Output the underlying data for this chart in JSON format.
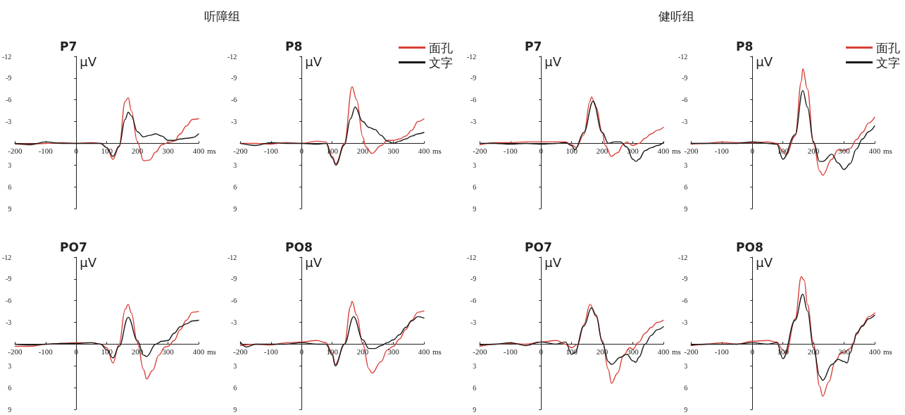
{
  "chart_data": [
    {
      "type": "line",
      "title": "P7",
      "ylabel": "μV",
      "xlabel": "ms",
      "annotations": [
        "听障组"
      ],
      "xlim": [
        -200,
        400
      ],
      "xticks": [
        -200,
        -100,
        0,
        100,
        200,
        300,
        400
      ],
      "ylim": [
        9,
        -12
      ],
      "yticks": [
        -12,
        -9,
        -6,
        -3,
        3,
        6,
        9
      ],
      "legend": false,
      "marker": "none",
      "line_style": "solid",
      "series": [
        {
          "color": "#d9413a",
          "x": [
            -200,
            -150,
            -100,
            -50,
            0,
            50,
            80,
            100,
            120,
            140,
            160,
            170,
            180,
            200,
            220,
            240,
            260,
            280,
            300,
            320,
            340,
            360,
            380,
            400
          ],
          "values": [
            0.1,
            0.1,
            0,
            -0.1,
            0,
            -0.1,
            0,
            0.6,
            2.2,
            0.5,
            -5.8,
            -6.3,
            -4.5,
            -0.2,
            2.4,
            2.3,
            1.2,
            0.2,
            -0.1,
            -0.3,
            -1.3,
            -2.4,
            -3.3,
            -3.4
          ]
        },
        {
          "color": "#1a1a1a",
          "x": [
            -200,
            -150,
            -100,
            -50,
            0,
            50,
            80,
            100,
            120,
            140,
            160,
            170,
            180,
            200,
            220,
            240,
            260,
            280,
            300,
            320,
            340,
            360,
            380,
            400
          ],
          "values": [
            0,
            0.2,
            -0.2,
            0,
            0,
            0,
            0,
            0.6,
            1.8,
            0.4,
            -3.3,
            -4.3,
            -3.8,
            -1.6,
            -0.9,
            -1.1,
            -1.3,
            -1.0,
            -0.4,
            -0.4,
            -0.6,
            -0.7,
            -0.8,
            -1.3
          ]
        }
      ]
    },
    {
      "type": "line",
      "title": "P8",
      "ylabel": "μV",
      "xlabel": "ms",
      "xlim": [
        -200,
        400
      ],
      "xticks": [
        -200,
        -100,
        0,
        100,
        200,
        300,
        400
      ],
      "ylim": [
        9,
        -12
      ],
      "yticks": [
        -12,
        -9,
        -6,
        -3,
        3,
        6,
        9
      ],
      "legend": "top right",
      "marker": "none",
      "line_style": "solid",
      "series": [
        {
          "name": "面孔",
          "color": "#d9413a",
          "x": [
            -200,
            -150,
            -100,
            -50,
            0,
            50,
            80,
            100,
            112,
            140,
            165,
            180,
            200,
            210,
            230,
            260,
            280,
            300,
            320,
            340,
            360,
            380,
            400
          ],
          "values": [
            0,
            0,
            0.1,
            -0.1,
            0,
            -0.3,
            -0.2,
            1.8,
            2.8,
            0,
            -7.8,
            -6,
            -0.9,
            0.5,
            1.4,
            0.3,
            -0.4,
            -0.4,
            -0.6,
            -1.0,
            -1.8,
            -3.0,
            -3.4
          ]
        },
        {
          "name": "文字",
          "color": "#1a1a1a",
          "x": [
            -200,
            -150,
            -100,
            -50,
            0,
            50,
            80,
            100,
            112,
            140,
            160,
            175,
            200,
            220,
            240,
            260,
            280,
            300,
            320,
            340,
            360,
            380,
            400
          ],
          "values": [
            0,
            0.3,
            -0.1,
            0,
            0,
            0.1,
            0,
            2.0,
            3.0,
            0.2,
            -3.4,
            -5.0,
            -3.0,
            -2.2,
            -1.9,
            -1.1,
            -0.3,
            0,
            -0.3,
            -0.6,
            -1.0,
            -1.3,
            -1.5
          ]
        }
      ]
    },
    {
      "type": "line",
      "title": "P7",
      "ylabel": "μV",
      "xlabel": "ms",
      "annotations": [
        "健听组"
      ],
      "xlim": [
        -200,
        400
      ],
      "xticks": [
        -200,
        -100,
        0,
        100,
        200,
        300,
        400
      ],
      "ylim": [
        9,
        -12
      ],
      "yticks": [
        -12,
        -9,
        -6,
        -3,
        3,
        6,
        9
      ],
      "legend": false,
      "marker": "none",
      "line_style": "solid",
      "series": [
        {
          "color": "#d9413a",
          "x": [
            -200,
            -150,
            -100,
            -50,
            0,
            50,
            80,
            100,
            115,
            140,
            160,
            165,
            180,
            200,
            210,
            230,
            250,
            270,
            280,
            300,
            320,
            340,
            360,
            380,
            400
          ],
          "values": [
            0.2,
            -0.1,
            -0.1,
            -0.2,
            -0.2,
            -0.2,
            -0.2,
            0.2,
            0.6,
            -1.2,
            -5.8,
            -6.4,
            -5.0,
            -1.5,
            0.3,
            1.8,
            1.3,
            0.1,
            -0.2,
            0.3,
            0,
            -0.7,
            -1.3,
            -1.8,
            -2.2
          ]
        },
        {
          "color": "#1a1a1a",
          "x": [
            -200,
            -150,
            -100,
            -50,
            0,
            50,
            80,
            100,
            110,
            140,
            170,
            200,
            220,
            240,
            260,
            280,
            300,
            310,
            320,
            340,
            360,
            380,
            400
          ],
          "values": [
            0,
            0,
            0.1,
            0,
            0.1,
            0,
            -0.1,
            0.3,
            0.9,
            -1.5,
            -5.8,
            -1.5,
            0,
            -0.2,
            -0.2,
            0.5,
            2.2,
            2.5,
            2.2,
            1.0,
            0.6,
            0.3,
            -0.1
          ]
        }
      ]
    },
    {
      "type": "line",
      "title": "P8",
      "ylabel": "μV",
      "xlabel": "ms",
      "xlim": [
        -200,
        400
      ],
      "xticks": [
        -200,
        -100,
        0,
        100,
        200,
        300,
        400
      ],
      "ylim": [
        9,
        -12
      ],
      "yticks": [
        -12,
        -9,
        -6,
        -3,
        3,
        6,
        9
      ],
      "legend": "top right",
      "marker": "none",
      "line_style": "solid",
      "series": [
        {
          "name": "面孔",
          "color": "#d9413a",
          "x": [
            -200,
            -150,
            -100,
            -50,
            0,
            50,
            80,
            100,
            110,
            140,
            160,
            165,
            180,
            200,
            220,
            230,
            260,
            280,
            300,
            320,
            340,
            360,
            380,
            400
          ],
          "values": [
            0.1,
            0,
            -0.2,
            -0.1,
            -0.1,
            -0.2,
            0,
            1.1,
            1.6,
            -1,
            -8.5,
            -10.3,
            -7.5,
            0,
            3.8,
            4.4,
            2.2,
            0.9,
            1.0,
            0.7,
            -0.5,
            -1.5,
            -2.8,
            -3.6
          ]
        },
        {
          "name": "文字",
          "color": "#1a1a1a",
          "x": [
            -200,
            -150,
            -100,
            -50,
            0,
            50,
            80,
            100,
            140,
            165,
            180,
            200,
            220,
            230,
            260,
            280,
            300,
            320,
            340,
            360,
            380,
            400
          ],
          "values": [
            0,
            0,
            0,
            0,
            -0.2,
            0,
            0.1,
            2.2,
            -1.2,
            -7.3,
            -5,
            -0.2,
            2.5,
            2.5,
            1.5,
            2.7,
            3.6,
            2.8,
            0.8,
            -0.6,
            -1.6,
            -2.4
          ]
        }
      ]
    },
    {
      "type": "line",
      "title": "PO7",
      "ylabel": "μV",
      "xlabel": "ms",
      "xlim": [
        -200,
        400
      ],
      "xticks": [
        -200,
        -100,
        0,
        100,
        200,
        300,
        400
      ],
      "ylim": [
        9,
        -12
      ],
      "yticks": [
        -12,
        -9,
        -6,
        -3,
        3,
        6,
        9
      ],
      "legend": false,
      "marker": "none",
      "line_style": "solid",
      "series": [
        {
          "color": "#d9413a",
          "x": [
            -200,
            -150,
            -100,
            -50,
            0,
            50,
            80,
            100,
            120,
            140,
            160,
            170,
            180,
            200,
            220,
            230,
            250,
            270,
            290,
            300,
            320,
            340,
            360,
            380,
            400
          ],
          "values": [
            0.3,
            0.3,
            0,
            -0.1,
            -0.2,
            -0.2,
            0,
            0.5,
            2.6,
            0,
            -4.8,
            -5.5,
            -4.3,
            -0.2,
            3.5,
            4.8,
            3.6,
            1.5,
            0.4,
            0.3,
            -0.5,
            -2.0,
            -3.3,
            -4.4,
            -4.5
          ]
        },
        {
          "color": "#1a1a1a",
          "x": [
            -200,
            -150,
            -100,
            -50,
            0,
            50,
            80,
            100,
            120,
            140,
            170,
            200,
            220,
            230,
            260,
            280,
            300,
            320,
            340,
            360,
            380,
            400
          ],
          "values": [
            0,
            0.1,
            0,
            -0.1,
            -0.1,
            -0.2,
            0,
            0.8,
            1.9,
            0.3,
            -3.7,
            -0.5,
            1.5,
            1.7,
            0,
            -0.4,
            -0.5,
            -1.5,
            -2.4,
            -2.8,
            -3.2,
            -3.3
          ]
        }
      ]
    },
    {
      "type": "line",
      "title": "PO8",
      "ylabel": "μV",
      "xlabel": "ms",
      "xlim": [
        -200,
        400
      ],
      "xticks": [
        -200,
        -100,
        0,
        100,
        200,
        300,
        400
      ],
      "ylim": [
        9,
        -12
      ],
      "yticks": [
        -12,
        -9,
        -6,
        -3,
        3,
        6,
        9
      ],
      "legend": false,
      "marker": "none",
      "line_style": "solid",
      "series": [
        {
          "color": "#d9413a",
          "x": [
            -200,
            -150,
            -100,
            -50,
            0,
            50,
            80,
            100,
            110,
            140,
            160,
            165,
            180,
            200,
            220,
            230,
            260,
            280,
            300,
            320,
            340,
            360,
            380,
            400
          ],
          "values": [
            0.2,
            0,
            0.1,
            -0.2,
            -0.3,
            -0.5,
            -0.2,
            1.2,
            2.8,
            0,
            -5.2,
            -5.9,
            -4,
            0,
            3.4,
            4,
            2.4,
            0.8,
            0.3,
            -0.7,
            -2,
            -3.3,
            -4.4,
            -4.6
          ]
        },
        {
          "color": "#1a1a1a",
          "x": [
            -200,
            -180,
            -150,
            -100,
            -50,
            0,
            50,
            80,
            100,
            110,
            140,
            170,
            200,
            220,
            240,
            260,
            280,
            300,
            320,
            340,
            360,
            380,
            400
          ],
          "values": [
            -0.3,
            0.4,
            0,
            0,
            0,
            -0.2,
            0,
            0,
            1.5,
            3.0,
            0,
            -3.8,
            -0.6,
            0.6,
            0.6,
            0.2,
            -0.2,
            -0.6,
            -1.3,
            -2.3,
            -3.2,
            -3.8,
            -3.6
          ]
        }
      ]
    },
    {
      "type": "line",
      "title": "PO7",
      "ylabel": "μV",
      "xlabel": "ms",
      "xlim": [
        -200,
        400
      ],
      "xticks": [
        -200,
        -100,
        0,
        100,
        200,
        300,
        400
      ],
      "ylim": [
        9,
        -12
      ],
      "yticks": [
        -12,
        -9,
        -6,
        -3,
        3,
        6,
        9
      ],
      "legend": false,
      "marker": "none",
      "line_style": "solid",
      "series": [
        {
          "color": "#d9413a",
          "x": [
            -200,
            -150,
            -100,
            -50,
            0,
            50,
            80,
            100,
            120,
            140,
            160,
            180,
            200,
            220,
            230,
            250,
            270,
            290,
            300,
            320,
            340,
            360,
            380,
            400
          ],
          "values": [
            0.3,
            0,
            -0.1,
            0,
            -0.3,
            -0.5,
            0,
            0.5,
            0,
            -2.7,
            -5.5,
            -3.8,
            -0.5,
            3.5,
            5.4,
            4.0,
            1.5,
            0.5,
            0.7,
            -0.3,
            -1.5,
            -2.3,
            -3.0,
            -3.3
          ]
        },
        {
          "color": "#1a1a1a",
          "x": [
            -200,
            -150,
            -100,
            -50,
            0,
            50,
            80,
            100,
            110,
            140,
            165,
            180,
            200,
            220,
            230,
            260,
            280,
            300,
            310,
            320,
            340,
            360,
            380,
            400
          ],
          "values": [
            0.1,
            0,
            -0.2,
            0.2,
            -0.3,
            0,
            -0.3,
            1.4,
            1.2,
            -2.5,
            -5.0,
            -4.0,
            -0.3,
            2.4,
            2.8,
            1.8,
            1.4,
            2.3,
            2.5,
            1.8,
            0,
            -1.2,
            -2.0,
            -2.4
          ]
        }
      ]
    },
    {
      "type": "line",
      "title": "PO8",
      "ylabel": "μV",
      "xlabel": "ms",
      "xlim": [
        -200,
        400
      ],
      "xticks": [
        -200,
        -100,
        0,
        100,
        200,
        300,
        400
      ],
      "ylim": [
        9,
        -12
      ],
      "yticks": [
        -12,
        -9,
        -6,
        -3,
        3,
        6,
        9
      ],
      "legend": false,
      "marker": "none",
      "line_style": "solid",
      "series": [
        {
          "color": "#d9413a",
          "x": [
            -200,
            -150,
            -100,
            -50,
            0,
            50,
            80,
            100,
            110,
            140,
            160,
            170,
            180,
            200,
            220,
            230,
            250,
            270,
            290,
            300,
            320,
            330,
            340,
            360,
            380,
            400
          ],
          "values": [
            0.2,
            0,
            -0.2,
            0,
            -0.4,
            -0.5,
            -0.3,
            0.8,
            1.3,
            -3.5,
            -9.3,
            -8.8,
            -5.5,
            0,
            5.8,
            7.2,
            5.2,
            2.5,
            1.2,
            1.1,
            0.6,
            -0.2,
            -1.3,
            -2.6,
            -3.8,
            -4.3
          ]
        },
        {
          "color": "#1a1a1a",
          "x": [
            -200,
            -150,
            -100,
            -50,
            0,
            50,
            80,
            100,
            140,
            165,
            180,
            200,
            220,
            230,
            260,
            280,
            300,
            310,
            320,
            330,
            340,
            360,
            380,
            400
          ],
          "values": [
            0.1,
            0,
            0,
            0,
            -0.2,
            0,
            -0.2,
            2.0,
            -3.3,
            -6.9,
            -4.6,
            0.5,
            4.4,
            5.0,
            2.8,
            2.1,
            2.4,
            2.6,
            1.2,
            0,
            -1.5,
            -2.5,
            -3.5,
            -4.0
          ]
        }
      ]
    }
  ]
}
